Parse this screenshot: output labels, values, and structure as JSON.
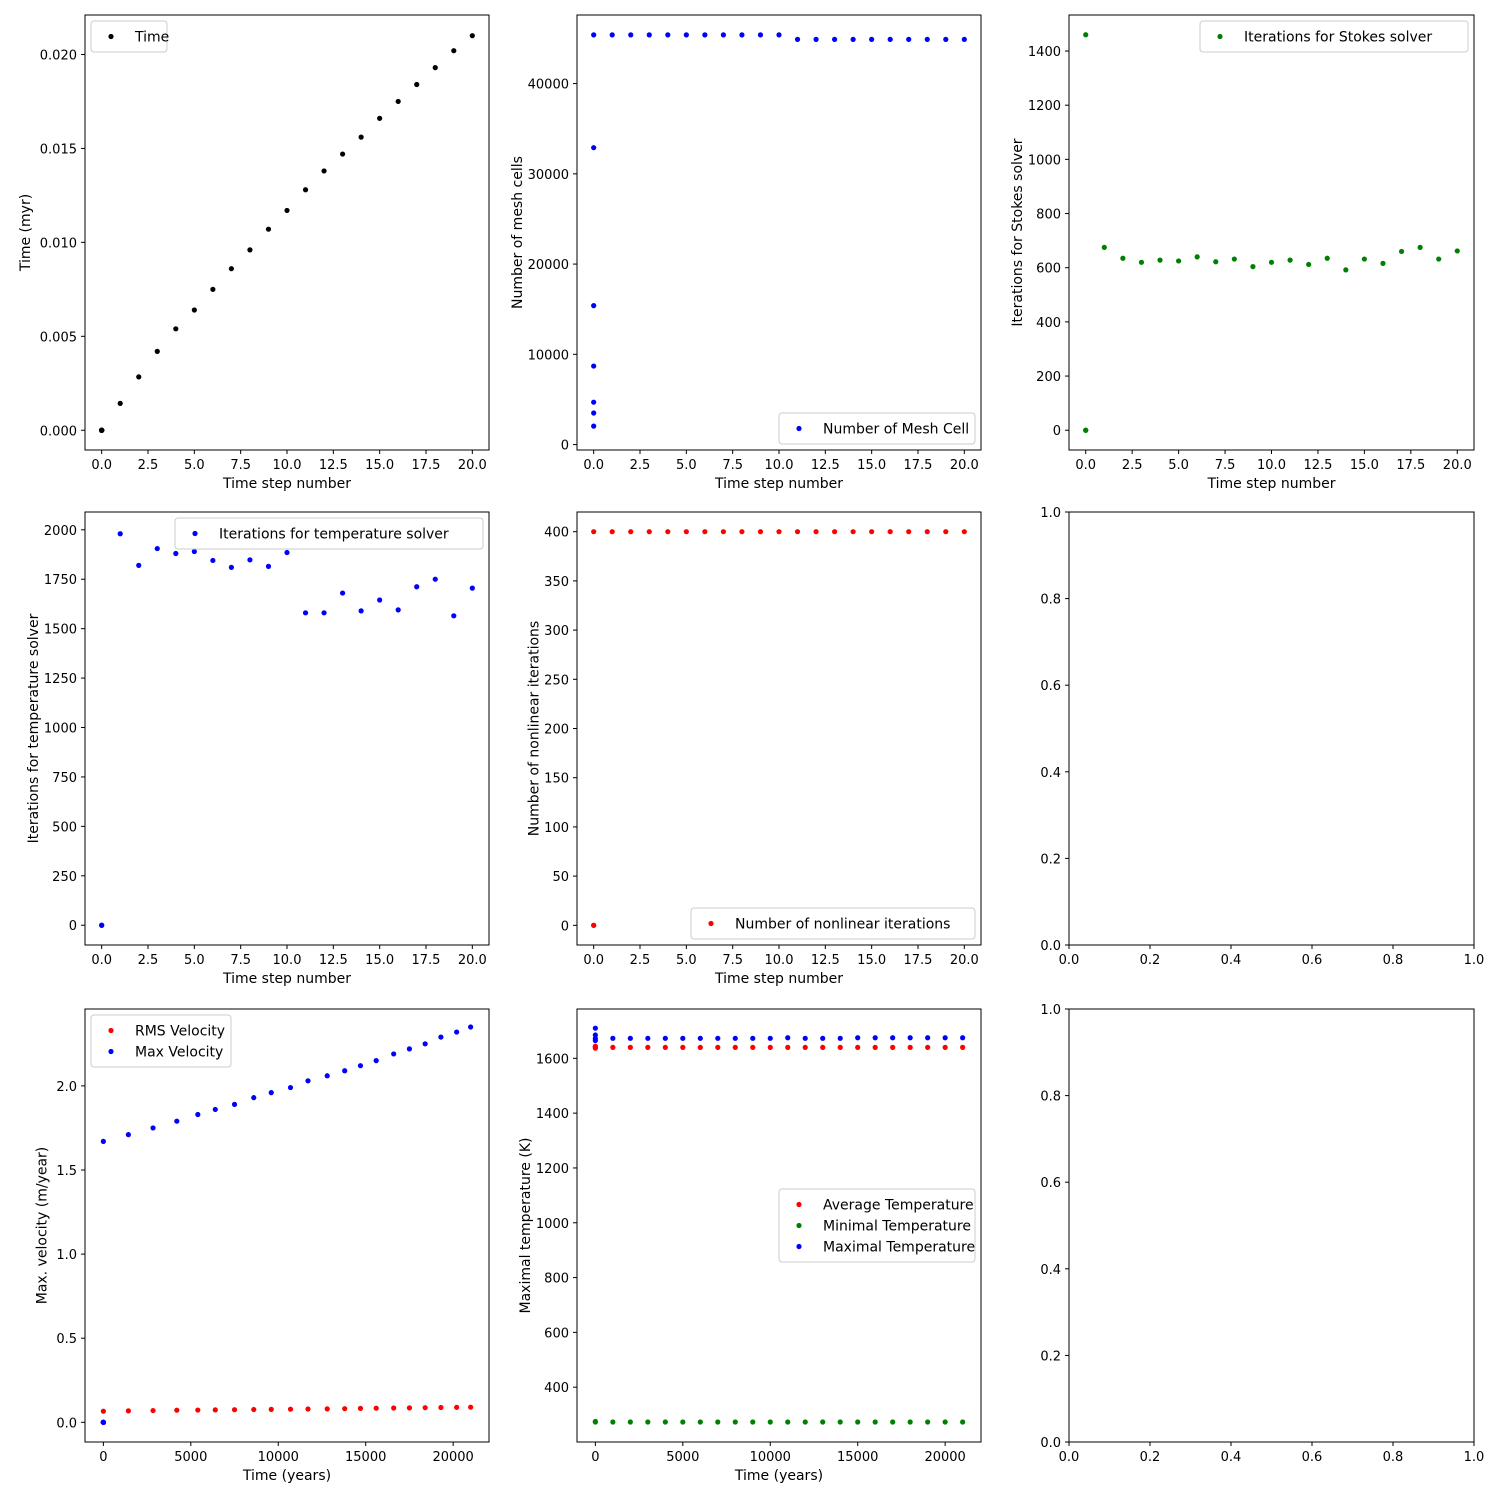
{
  "chart_data": [
    {
      "id": "time",
      "type": "scatter",
      "xlabel": "Time step number",
      "ylabel": "Time (myr)",
      "xlim": [
        -0.9,
        20.9
      ],
      "ylim": [
        -0.00105,
        0.0221
      ],
      "xticks": [
        "0.0",
        "2.5",
        "5.0",
        "7.5",
        "10.0",
        "12.5",
        "15.0",
        "17.5",
        "20.0"
      ],
      "xtick_values": [
        0,
        2.5,
        5,
        7.5,
        10,
        12.5,
        15,
        17.5,
        20
      ],
      "yticks": [
        "0.000",
        "0.005",
        "0.010",
        "0.015",
        "0.020"
      ],
      "ytick_values": [
        0,
        0.005,
        0.01,
        0.015,
        0.02
      ],
      "legend": "top-left",
      "series": [
        {
          "name": "Time",
          "color": "#000000",
          "x": [
            0,
            0,
            0,
            0,
            0,
            0,
            0,
            1,
            2,
            3,
            4,
            5,
            6,
            7,
            8,
            9,
            10,
            11,
            12,
            13,
            14,
            15,
            16,
            17,
            18,
            19,
            20
          ],
          "y": [
            0,
            0,
            0,
            0,
            0,
            0,
            0,
            0.00143,
            0.00284,
            0.0042,
            0.0054,
            0.0064,
            0.0075,
            0.0086,
            0.0096,
            0.0107,
            0.0117,
            0.0128,
            0.0138,
            0.0147,
            0.0156,
            0.0166,
            0.0175,
            0.0184,
            0.0193,
            0.0202,
            0.021
          ]
        }
      ]
    },
    {
      "id": "mesh",
      "type": "scatter",
      "xlabel": "Time step number",
      "ylabel": "Number of mesh cells",
      "xlim": [
        -0.9,
        20.9
      ],
      "ylim": [
        -600,
        47600
      ],
      "xticks": [
        "0.0",
        "2.5",
        "5.0",
        "7.5",
        "10.0",
        "12.5",
        "15.0",
        "17.5",
        "20.0"
      ],
      "xtick_values": [
        0,
        2.5,
        5,
        7.5,
        10,
        12.5,
        15,
        17.5,
        20
      ],
      "yticks": [
        "0",
        "10000",
        "20000",
        "30000",
        "40000"
      ],
      "ytick_values": [
        0,
        10000,
        20000,
        30000,
        40000
      ],
      "legend": "bottom-right",
      "series": [
        {
          "name": "Number of Mesh Cell",
          "color": "#0000ff",
          "x": [
            0,
            0,
            0,
            0,
            0,
            0,
            0,
            1,
            2,
            3,
            4,
            5,
            6,
            7,
            8,
            9,
            10,
            11,
            12,
            13,
            14,
            15,
            16,
            17,
            18,
            19,
            20
          ],
          "y": [
            2048,
            3500,
            4700,
            8700,
            15400,
            32900,
            45400,
            45400,
            45400,
            45400,
            45400,
            45400,
            45400,
            45400,
            45400,
            45400,
            45400,
            44900,
            44900,
            44900,
            44900,
            44900,
            44900,
            44900,
            44900,
            44900,
            44900
          ]
        }
      ]
    },
    {
      "id": "stokes",
      "type": "scatter",
      "xlabel": "Time step number",
      "ylabel": "Iterations for Stokes solver",
      "xlim": [
        -0.9,
        20.9
      ],
      "ylim": [
        -73,
        1533
      ],
      "xticks": [
        "0.0",
        "2.5",
        "5.0",
        "7.5",
        "10.0",
        "12.5",
        "15.0",
        "17.5",
        "20.0"
      ],
      "xtick_values": [
        0,
        2.5,
        5,
        7.5,
        10,
        12.5,
        15,
        17.5,
        20
      ],
      "yticks": [
        "0",
        "200",
        "400",
        "600",
        "800",
        "1000",
        "1200",
        "1400"
      ],
      "ytick_values": [
        0,
        200,
        400,
        600,
        800,
        1000,
        1200,
        1400
      ],
      "legend": "top-right",
      "series": [
        {
          "name": "Iterations for Stokes solver",
          "color": "#008000",
          "x": [
            0,
            0,
            0,
            1,
            2,
            3,
            4,
            5,
            6,
            7,
            8,
            9,
            10,
            11,
            12,
            13,
            14,
            15,
            16,
            17,
            18,
            19,
            20
          ],
          "y": [
            0,
            0,
            1460,
            675,
            635,
            620,
            628,
            625,
            640,
            622,
            632,
            604,
            620,
            628,
            612,
            635,
            592,
            632,
            616,
            660,
            675,
            632,
            662
          ]
        }
      ]
    },
    {
      "id": "temp-solver",
      "type": "scatter",
      "xlabel": "Time step number",
      "ylabel": "Iterations for temperature solver",
      "xlim": [
        -0.9,
        20.9
      ],
      "ylim": [
        -100,
        2090
      ],
      "xticks": [
        "0.0",
        "2.5",
        "5.0",
        "7.5",
        "10.0",
        "12.5",
        "15.0",
        "17.5",
        "20.0"
      ],
      "xtick_values": [
        0,
        2.5,
        5,
        7.5,
        10,
        12.5,
        15,
        17.5,
        20
      ],
      "yticks": [
        "0",
        "250",
        "500",
        "750",
        "1000",
        "1250",
        "1500",
        "1750",
        "2000"
      ],
      "ytick_values": [
        0,
        250,
        500,
        750,
        1000,
        1250,
        1500,
        1750,
        2000
      ],
      "legend": "top-right",
      "series": [
        {
          "name": "Iterations for temperature solver",
          "color": "#0000ff",
          "x": [
            0,
            0,
            1,
            2,
            3,
            4,
            5,
            6,
            7,
            8,
            9,
            10,
            11,
            12,
            13,
            14,
            15,
            16,
            17,
            18,
            19,
            20
          ],
          "y": [
            0,
            0,
            1980,
            1820,
            1905,
            1880,
            1890,
            1845,
            1810,
            1848,
            1815,
            1885,
            1580,
            1580,
            1680,
            1590,
            1645,
            1595,
            1712,
            1750,
            1565,
            1705
          ]
        }
      ]
    },
    {
      "id": "nonlinear",
      "type": "scatter",
      "xlabel": "Time step number",
      "ylabel": "Number of nonlinear iterations",
      "xlim": [
        -0.9,
        20.9
      ],
      "ylim": [
        -20,
        420
      ],
      "xticks": [
        "0.0",
        "2.5",
        "5.0",
        "7.5",
        "10.0",
        "12.5",
        "15.0",
        "17.5",
        "20.0"
      ],
      "xtick_values": [
        0,
        2.5,
        5,
        7.5,
        10,
        12.5,
        15,
        17.5,
        20
      ],
      "yticks": [
        "0",
        "50",
        "100",
        "150",
        "200",
        "250",
        "300",
        "350",
        "400"
      ],
      "ytick_values": [
        0,
        50,
        100,
        150,
        200,
        250,
        300,
        350,
        400
      ],
      "legend": "bottom-right",
      "series": [
        {
          "name": "Number of nonlinear iterations",
          "color": "#ff0000",
          "x": [
            0,
            0,
            0,
            1,
            2,
            3,
            4,
            5,
            6,
            7,
            8,
            9,
            10,
            11,
            12,
            13,
            14,
            15,
            16,
            17,
            18,
            19,
            20
          ],
          "y": [
            0,
            0,
            400,
            400,
            400,
            400,
            400,
            400,
            400,
            400,
            400,
            400,
            400,
            400,
            400,
            400,
            400,
            400,
            400,
            400,
            400,
            400,
            400
          ]
        }
      ]
    },
    {
      "id": "empty-1",
      "type": "scatter",
      "xlim": [
        0,
        1
      ],
      "ylim": [
        0,
        1
      ],
      "xticks": [
        "0.0",
        "0.2",
        "0.4",
        "0.6",
        "0.8",
        "1.0"
      ],
      "xtick_values": [
        0,
        0.2,
        0.4,
        0.6,
        0.8,
        1
      ],
      "yticks": [
        "0.0",
        "0.2",
        "0.4",
        "0.6",
        "0.8",
        "1.0"
      ],
      "ytick_values": [
        0,
        0.2,
        0.4,
        0.6,
        0.8,
        1
      ],
      "series": []
    },
    {
      "id": "velocity",
      "type": "scatter",
      "xlabel": "Time (years)",
      "ylabel": "Max. velocity (m/year)",
      "xlim": [
        -1050,
        22050
      ],
      "ylim": [
        -0.117,
        2.457
      ],
      "xticks": [
        "0",
        "5000",
        "10000",
        "15000",
        "20000"
      ],
      "xtick_values": [
        0,
        5000,
        10000,
        15000,
        20000
      ],
      "yticks": [
        "0.0",
        "0.5",
        "1.0",
        "1.5",
        "2.0"
      ],
      "ytick_values": [
        0,
        0.5,
        1,
        1.5,
        2
      ],
      "legend": "top-left",
      "series": [
        {
          "name": "RMS Velocity",
          "color": "#ff0000",
          "x": [
            0,
            0,
            0,
            0,
            0,
            0,
            0,
            1430,
            2840,
            4200,
            5400,
            6400,
            7500,
            8600,
            9600,
            10700,
            11700,
            12800,
            13800,
            14700,
            15600,
            16600,
            17500,
            18400,
            19300,
            20200,
            21000
          ],
          "y": [
            0,
            0,
            0,
            0,
            0,
            0,
            0.066,
            0.068,
            0.07,
            0.072,
            0.073,
            0.074,
            0.075,
            0.076,
            0.077,
            0.078,
            0.079,
            0.08,
            0.081,
            0.083,
            0.084,
            0.085,
            0.086,
            0.087,
            0.088,
            0.089,
            0.09
          ]
        },
        {
          "name": "Max Velocity",
          "color": "#0000ff",
          "x": [
            0,
            0,
            0,
            0,
            0,
            0,
            0,
            1430,
            2840,
            4200,
            5400,
            6400,
            7500,
            8600,
            9600,
            10700,
            11700,
            12800,
            13800,
            14700,
            15600,
            16600,
            17500,
            18400,
            19300,
            20200,
            21000
          ],
          "y": [
            0,
            0,
            0,
            0,
            0,
            0,
            1.67,
            1.71,
            1.75,
            1.79,
            1.83,
            1.86,
            1.89,
            1.93,
            1.96,
            1.99,
            2.03,
            2.06,
            2.09,
            2.12,
            2.15,
            2.19,
            2.22,
            2.25,
            2.29,
            2.32,
            2.35
          ]
        }
      ]
    },
    {
      "id": "temperature",
      "type": "scatter",
      "xlabel": "Time (years)",
      "ylabel": "Maximal temperature (K)",
      "xlim": [
        -1050,
        22050
      ],
      "ylim": [
        200,
        1780
      ],
      "xticks": [
        "0",
        "5000",
        "10000",
        "15000",
        "20000"
      ],
      "xtick_values": [
        0,
        5000,
        10000,
        15000,
        20000
      ],
      "yticks": [
        "400",
        "600",
        "800",
        "1000",
        "1200",
        "1400",
        "1600"
      ],
      "ytick_values": [
        400,
        600,
        800,
        1000,
        1200,
        1400,
        1600
      ],
      "legend": "center-right",
      "series": [
        {
          "name": "Average Temperature",
          "color": "#ff0000",
          "x": [
            0,
            0,
            0,
            0,
            1000,
            2000,
            3000,
            4000,
            5000,
            6000,
            7000,
            8000,
            9000,
            10000,
            11000,
            12000,
            13000,
            14000,
            15000,
            16000,
            17000,
            18000,
            19000,
            20000,
            21000
          ],
          "y": [
            1637,
            1640,
            1642,
            1644,
            1640,
            1640,
            1640,
            1640,
            1640,
            1640,
            1640,
            1640,
            1640,
            1640,
            1640,
            1640,
            1640,
            1640,
            1640,
            1640,
            1640,
            1640,
            1640,
            1640,
            1640
          ]
        },
        {
          "name": "Minimal Temperature",
          "color": "#008000",
          "x": [
            0,
            0,
            1000,
            2000,
            3000,
            4000,
            5000,
            6000,
            7000,
            8000,
            9000,
            10000,
            11000,
            12000,
            13000,
            14000,
            15000,
            16000,
            17000,
            18000,
            19000,
            20000,
            21000
          ],
          "y": [
            273,
            275,
            273,
            273,
            273,
            273,
            273,
            273,
            273,
            273,
            273,
            273,
            273,
            273,
            273,
            273,
            273,
            273,
            273,
            273,
            273,
            273,
            273
          ]
        },
        {
          "name": "Maximal Temperature",
          "color": "#0000ff",
          "x": [
            0,
            0,
            0,
            0,
            1000,
            2000,
            3000,
            4000,
            5000,
            6000,
            7000,
            8000,
            9000,
            10000,
            11000,
            12000,
            13000,
            14000,
            15000,
            16000,
            17000,
            18000,
            19000,
            20000,
            21000
          ],
          "y": [
            1710,
            1685,
            1672,
            1665,
            1673,
            1673,
            1673,
            1673,
            1673,
            1673,
            1673,
            1673,
            1673,
            1673,
            1675,
            1673,
            1673,
            1673,
            1675,
            1675,
            1675,
            1675,
            1675,
            1675,
            1675
          ]
        }
      ]
    },
    {
      "id": "empty-2",
      "type": "scatter",
      "xlim": [
        0,
        1
      ],
      "ylim": [
        0,
        1
      ],
      "xticks": [
        "0.0",
        "0.2",
        "0.4",
        "0.6",
        "0.8",
        "1.0"
      ],
      "xtick_values": [
        0,
        0.2,
        0.4,
        0.6,
        0.8,
        1
      ],
      "yticks": [
        "0.0",
        "0.2",
        "0.4",
        "0.6",
        "0.8",
        "1.0"
      ],
      "ytick_values": [
        0,
        0.2,
        0.4,
        0.6,
        0.8,
        1
      ],
      "series": []
    }
  ]
}
